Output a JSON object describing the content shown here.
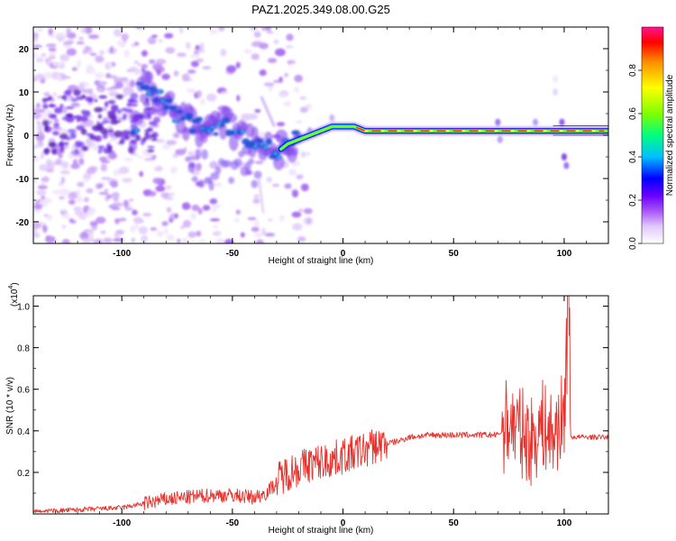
{
  "title": "PAZ1.2025.349.08.00.G25",
  "colors": {
    "snr_line": "#e8322c",
    "background": "#ffffff",
    "axis": "#000000"
  },
  "chart_data": [
    {
      "type": "heatmap",
      "name": "spectrogram",
      "title": "PAZ1.2025.349.08.00.G25",
      "xlabel": "Height of straight line (km)",
      "ylabel": "Frequency (Hz)",
      "xlim": [
        -140,
        120
      ],
      "ylim": [
        -25,
        25
      ],
      "xticks": [
        -100,
        -50,
        0,
        50,
        100
      ],
      "xtick_labels": [
        "-100",
        "-50",
        "0",
        "50",
        "100"
      ],
      "yticks": [
        20,
        10,
        0,
        -10,
        -20
      ],
      "ytick_labels": [
        "20",
        "10",
        "0",
        "-10",
        "-20"
      ],
      "colorbar": {
        "label": "Normalized spectral amplitude",
        "range": [
          0.0,
          1.0
        ],
        "ticks": [
          0.0,
          0.2,
          0.4,
          0.6,
          0.8
        ],
        "tick_labels": [
          "0.0",
          "0.2",
          "0.4",
          "0.6",
          "0.8"
        ],
        "colormap": [
          "#ffffff",
          "#c79bf5",
          "#8a2be2",
          "#0000ff",
          "#00bfff",
          "#00ff7f",
          "#7fff00",
          "#ffff00",
          "#ff8c00",
          "#ff0000",
          "#ff1493"
        ]
      },
      "ridge": [
        {
          "x": -92,
          "y": 12
        },
        {
          "x": -85,
          "y": 9
        },
        {
          "x": -78,
          "y": 6
        },
        {
          "x": -70,
          "y": 3
        },
        {
          "x": -62,
          "y": 1
        },
        {
          "x": -55,
          "y": 3
        },
        {
          "x": -50,
          "y": 2
        },
        {
          "x": -45,
          "y": 0
        },
        {
          "x": -40,
          "y": -1
        },
        {
          "x": -35,
          "y": -3
        },
        {
          "x": -30,
          "y": -4
        },
        {
          "x": -25,
          "y": -2
        },
        {
          "x": -20,
          "y": -1
        },
        {
          "x": -15,
          "y": 0
        },
        {
          "x": -10,
          "y": 1
        },
        {
          "x": -5,
          "y": 2
        },
        {
          "x": 0,
          "y": 2
        },
        {
          "x": 5,
          "y": 2
        },
        {
          "x": 10,
          "y": 1
        },
        {
          "x": 20,
          "y": 1
        },
        {
          "x": 40,
          "y": 1
        },
        {
          "x": 60,
          "y": 1
        },
        {
          "x": 80,
          "y": 1
        },
        {
          "x": 100,
          "y": 1
        },
        {
          "x": 120,
          "y": 1
        }
      ]
    },
    {
      "type": "line",
      "name": "snr",
      "xlabel": "Height of straight line (km)",
      "ylabel": "SNR (10 * v/v)",
      "scale_label": "(x10",
      "scale_exponent": "4",
      "xlim": [
        -140,
        120
      ],
      "ylim": [
        0,
        1.05
      ],
      "xticks": [
        -100,
        -50,
        0,
        50,
        100
      ],
      "xtick_labels": [
        "-100",
        "-50",
        "0",
        "50",
        "100"
      ],
      "yticks": [
        0.2,
        0.4,
        0.6,
        0.8,
        1.0
      ],
      "ytick_labels": [
        "0.2",
        "0.4",
        "0.6",
        "0.8",
        "1.0"
      ],
      "series": [
        {
          "name": "SNR",
          "x": [
            -140,
            -120,
            -100,
            -90,
            -80,
            -70,
            -60,
            -50,
            -40,
            -35,
            -30,
            -28,
            -25,
            -20,
            -15,
            -10,
            -5,
            0,
            5,
            10,
            15,
            20,
            25,
            30,
            40,
            50,
            60,
            70,
            72,
            75,
            80,
            85,
            90,
            95,
            98,
            100,
            101,
            102,
            103,
            105,
            110,
            120
          ],
          "y": [
            0.01,
            0.02,
            0.03,
            0.05,
            0.07,
            0.08,
            0.09,
            0.09,
            0.08,
            0.1,
            0.15,
            0.18,
            0.2,
            0.22,
            0.24,
            0.25,
            0.26,
            0.28,
            0.29,
            0.31,
            0.33,
            0.34,
            0.35,
            0.37,
            0.38,
            0.38,
            0.38,
            0.38,
            0.4,
            0.45,
            0.4,
            0.35,
            0.43,
            0.37,
            0.45,
            0.45,
            0.75,
            1.05,
            0.37,
            0.37,
            0.37,
            0.37
          ]
        }
      ]
    }
  ]
}
